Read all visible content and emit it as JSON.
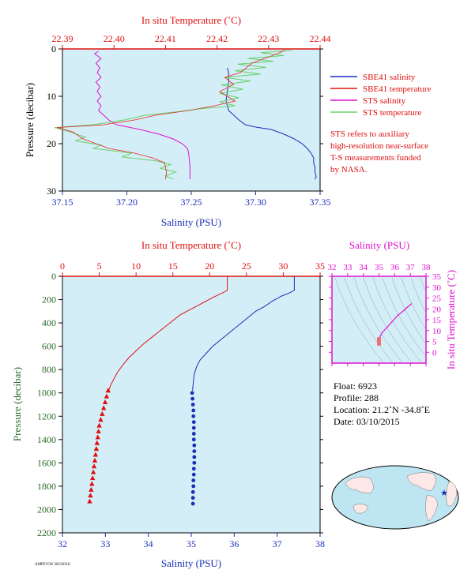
{
  "colors": {
    "plot_bg": "#d4eef8",
    "red": "#e01010",
    "blue": "#1a2fb8",
    "magenta": "#e010d0",
    "green": "#6ad06a",
    "pink": "#f4a0a0",
    "axis_green": "#2a6a2a",
    "black": "#000000"
  },
  "legend": {
    "items": [
      {
        "label": "SBE41 salinity",
        "color": "#1a2fb8"
      },
      {
        "label": "SBE41 temperature",
        "color": "#e01010"
      },
      {
        "label": "STS salinity",
        "color": "#e010d0"
      },
      {
        "label": "STS temperature",
        "color": "#6ad06a"
      }
    ],
    "note": [
      "STS refers to auxiliary",
      "high-resolution near-surface",
      "T-S measurements funded",
      "by NASA."
    ]
  },
  "float_info": {
    "float": "Float:  6923",
    "profile": "Profile:  288",
    "location": "Location:  21.2˚N  -34.8˚E",
    "date": "Date:  03/10/2015"
  },
  "footer_tag": "AMPF/UW 20150310",
  "chart_data": [
    {
      "id": "top",
      "type": "line",
      "title": "",
      "top_xlabel": "In situ Temperature (˚C)",
      "bottom_xlabel": "Salinity (PSU)",
      "ylabel": "Pressure (decibar)",
      "temp_range": [
        22.39,
        22.44
      ],
      "temp_ticks": [
        "22.39",
        "22.40",
        "22.41",
        "22.42",
        "22.43",
        "22.44"
      ],
      "sal_range": [
        37.15,
        37.35
      ],
      "sal_ticks": [
        "37.15",
        "37.20",
        "37.25",
        "37.30",
        "37.35"
      ],
      "p_range": [
        0,
        30
      ],
      "p_ticks": [
        "0",
        "10",
        "20",
        "30"
      ],
      "series": [
        {
          "name": "SBE41 salinity",
          "axis": "sal",
          "points": [
            [
              37.278,
              4
            ],
            [
              37.279,
              5
            ],
            [
              37.279,
              7
            ],
            [
              37.278,
              9
            ],
            [
              37.277,
              11
            ],
            [
              37.279,
              13
            ],
            [
              37.283,
              14
            ],
            [
              37.287,
              15
            ],
            [
              37.292,
              16
            ],
            [
              37.3,
              16.5
            ],
            [
              37.312,
              17
            ],
            [
              37.322,
              18
            ],
            [
              37.33,
              19
            ],
            [
              37.336,
              20
            ],
            [
              37.34,
              21
            ],
            [
              37.343,
              22
            ],
            [
              37.345,
              23
            ],
            [
              37.345,
              24
            ],
            [
              37.346,
              25
            ],
            [
              37.346,
              26
            ],
            [
              37.347,
              27
            ],
            [
              37.346,
              27.5
            ]
          ]
        },
        {
          "name": "SBE41 temperature",
          "axis": "temp",
          "points": [
            [
              22.4332,
              0.3
            ],
            [
              22.4305,
              1.5
            ],
            [
              22.4268,
              3
            ],
            [
              22.4245,
              5
            ],
            [
              22.4215,
              6
            ],
            [
              22.4232,
              7.5
            ],
            [
              22.4205,
              9
            ],
            [
              22.4235,
              11
            ],
            [
              22.4195,
              12
            ],
            [
              22.4145,
              13
            ],
            [
              22.408,
              14
            ],
            [
              22.404,
              15
            ],
            [
              22.398,
              16
            ],
            [
              22.389,
              16.6
            ],
            [
              22.392,
              17.5
            ],
            [
              22.394,
              19
            ],
            [
              22.3965,
              20
            ],
            [
              22.399,
              21
            ],
            [
              22.404,
              22
            ],
            [
              22.4075,
              23
            ],
            [
              22.4098,
              24
            ],
            [
              22.4102,
              26
            ],
            [
              22.41,
              27.5
            ]
          ]
        },
        {
          "name": "STS salinity",
          "axis": "sal",
          "points": [
            [
              37.178,
              0.5
            ],
            [
              37.175,
              1
            ],
            [
              37.18,
              2
            ],
            [
              37.176,
              3
            ],
            [
              37.179,
              4
            ],
            [
              37.177,
              5
            ],
            [
              37.18,
              6
            ],
            [
              37.176,
              7
            ],
            [
              37.179,
              8
            ],
            [
              37.177,
              9
            ],
            [
              37.18,
              10
            ],
            [
              37.177,
              11
            ],
            [
              37.18,
              12
            ],
            [
              37.178,
              13
            ],
            [
              37.182,
              14
            ],
            [
              37.186,
              15
            ],
            [
              37.192,
              16
            ],
            [
              37.21,
              17
            ],
            [
              37.225,
              18
            ],
            [
              37.236,
              19
            ],
            [
              37.243,
              20
            ],
            [
              37.247,
              21
            ],
            [
              37.248,
              22
            ],
            [
              37.249,
              25
            ],
            [
              37.249,
              27.5
            ]
          ]
        },
        {
          "name": "STS temperature",
          "axis": "temp",
          "points": [
            [
              22.4345,
              0.3
            ],
            [
              22.4285,
              0.8
            ],
            [
              22.433,
              1.4
            ],
            [
              22.426,
              2
            ],
            [
              22.431,
              2.6
            ],
            [
              22.424,
              3.2
            ],
            [
              22.4295,
              3.9
            ],
            [
              22.4235,
              4.6
            ],
            [
              22.4285,
              5.3
            ],
            [
              22.4215,
              6
            ],
            [
              22.4265,
              6.8
            ],
            [
              22.4208,
              7.6
            ],
            [
              22.425,
              8.5
            ],
            [
              22.4205,
              9.4
            ],
            [
              22.4242,
              10.3
            ],
            [
              22.4205,
              11.2
            ],
            [
              22.4235,
              12
            ],
            [
              22.417,
              12.6
            ],
            [
              22.412,
              13.3
            ],
            [
              22.406,
              14
            ],
            [
              22.402,
              15
            ],
            [
              22.396,
              16
            ],
            [
              22.3885,
              16.6
            ],
            [
              22.391,
              17.4
            ],
            [
              22.3945,
              18.6
            ],
            [
              22.3925,
              19.4
            ],
            [
              22.3975,
              20.3
            ],
            [
              22.396,
              21
            ],
            [
              22.4035,
              22
            ],
            [
              22.4015,
              22.8
            ],
            [
              22.408,
              23.6
            ],
            [
              22.411,
              24.4
            ],
            [
              22.409,
              25.2
            ],
            [
              22.412,
              26
            ],
            [
              22.41,
              26.8
            ],
            [
              22.4115,
              27.5
            ]
          ]
        }
      ]
    },
    {
      "id": "bottom",
      "type": "line",
      "title": "",
      "top_xlabel": "In situ Temperature (˚C)",
      "bottom_xlabel": "Salinity (PSU)",
      "ylabel": "Pressure (decibar)",
      "temp_range": [
        0,
        35
      ],
      "temp_ticks": [
        "0",
        "5",
        "10",
        "15",
        "20",
        "25",
        "30",
        "35"
      ],
      "sal_range": [
        32,
        38
      ],
      "sal_ticks": [
        "32",
        "33",
        "34",
        "35",
        "36",
        "37",
        "38"
      ],
      "p_range": [
        0,
        2200
      ],
      "p_ticks": [
        "0",
        "200",
        "400",
        "600",
        "800",
        "1000",
        "1200",
        "1400",
        "1600",
        "1800",
        "2000",
        "2200"
      ],
      "series": [
        {
          "name": "SBE41 temperature",
          "axis": "temp",
          "points": [
            [
              22.4,
              0
            ],
            [
              22.4,
              120
            ],
            [
              21.8,
              140
            ],
            [
              20.5,
              180
            ],
            [
              19.0,
              230
            ],
            [
              17.5,
              280
            ],
            [
              16.0,
              330
            ],
            [
              15.0,
              380
            ],
            [
              14.0,
              430
            ],
            [
              13.0,
              480
            ],
            [
              12.0,
              530
            ],
            [
              11.0,
              580
            ],
            [
              10.0,
              640
            ],
            [
              9.0,
              700
            ],
            [
              8.2,
              760
            ],
            [
              7.5,
              820
            ],
            [
              7.0,
              880
            ],
            [
              6.5,
              940
            ],
            [
              6.2,
              1000
            ]
          ]
        },
        {
          "name": "SBE41 temperature markers",
          "axis": "temp",
          "markers": "triangle",
          "points": [
            [
              6.2,
              980
            ],
            [
              6.0,
              1030
            ],
            [
              5.8,
              1080
            ],
            [
              5.6,
              1130
            ],
            [
              5.4,
              1180
            ],
            [
              5.2,
              1230
            ],
            [
              5.0,
              1280
            ],
            [
              4.9,
              1330
            ],
            [
              4.8,
              1380
            ],
            [
              4.7,
              1430
            ],
            [
              4.6,
              1480
            ],
            [
              4.5,
              1530
            ],
            [
              4.4,
              1580
            ],
            [
              4.3,
              1630
            ],
            [
              4.2,
              1680
            ],
            [
              4.1,
              1730
            ],
            [
              4.0,
              1780
            ],
            [
              3.9,
              1830
            ],
            [
              3.8,
              1880
            ],
            [
              3.7,
              1930
            ]
          ]
        },
        {
          "name": "SBE41 salinity",
          "axis": "sal",
          "points": [
            [
              37.4,
              0
            ],
            [
              37.4,
              120
            ],
            [
              37.3,
              140
            ],
            [
              37.1,
              170
            ],
            [
              36.9,
              210
            ],
            [
              36.7,
              260
            ],
            [
              36.5,
              300
            ],
            [
              36.3,
              360
            ],
            [
              36.1,
              420
            ],
            [
              35.9,
              480
            ],
            [
              35.7,
              540
            ],
            [
              35.5,
              600
            ],
            [
              35.35,
              660
            ],
            [
              35.2,
              720
            ],
            [
              35.12,
              780
            ],
            [
              35.07,
              840
            ],
            [
              35.05,
              900
            ],
            [
              35.03,
              980
            ]
          ]
        },
        {
          "name": "SBE41 salinity markers",
          "axis": "sal",
          "markers": "circle",
          "points": [
            [
              35.02,
              1000
            ],
            [
              35.03,
              1050
            ],
            [
              35.04,
              1100
            ],
            [
              35.05,
              1150
            ],
            [
              35.05,
              1200
            ],
            [
              35.06,
              1250
            ],
            [
              35.06,
              1300
            ],
            [
              35.06,
              1350
            ],
            [
              35.06,
              1400
            ],
            [
              35.07,
              1450
            ],
            [
              35.07,
              1500
            ],
            [
              35.07,
              1550
            ],
            [
              35.07,
              1600
            ],
            [
              35.06,
              1650
            ],
            [
              35.06,
              1700
            ],
            [
              35.05,
              1750
            ],
            [
              35.05,
              1800
            ],
            [
              35.04,
              1850
            ],
            [
              35.04,
              1900
            ],
            [
              35.04,
              1950
            ]
          ]
        }
      ]
    },
    {
      "id": "ts",
      "type": "scatter",
      "title": "",
      "top_xlabel": "Salinity (PSU)",
      "right_ylabel": "In situ Temperature (˚C)",
      "sal_range": [
        32,
        38
      ],
      "sal_ticks": [
        "32",
        "33",
        "34",
        "35",
        "36",
        "37",
        "38"
      ],
      "temp_range": [
        -5,
        35
      ],
      "temp_ticks": [
        "0",
        "5",
        "10",
        "15",
        "20",
        "25",
        "30",
        "35"
      ],
      "series": [
        {
          "name": "T-S curve",
          "axis": "ts",
          "points": [
            [
              35.0,
              4
            ],
            [
              35.0,
              5
            ],
            [
              35.0,
              6
            ],
            [
              35.05,
              7
            ],
            [
              35.2,
              9
            ],
            [
              35.45,
              11
            ],
            [
              35.7,
              13
            ],
            [
              35.95,
              15
            ],
            [
              36.2,
              17
            ],
            [
              36.55,
              19
            ],
            [
              36.85,
              21
            ],
            [
              37.1,
              22.5
            ]
          ]
        }
      ]
    }
  ]
}
